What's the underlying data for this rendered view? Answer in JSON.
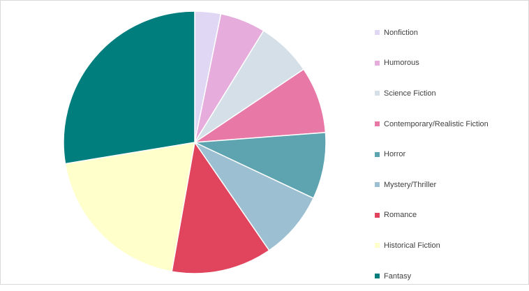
{
  "chart_data": {
    "type": "pie",
    "title": "",
    "categories": [
      "Nonfiction",
      "Humorous",
      "Science Fiction",
      "Contemporary/Realistic Fiction",
      "Horror",
      "Mystery/Thriller",
      "Romance",
      "Historical Fiction",
      "Fantasy"
    ],
    "values": [
      3.2,
      5.6,
      6.8,
      8.2,
      8.2,
      8.4,
      12.4,
      19.6,
      27.6
    ],
    "colors": [
      "#e0d7f4",
      "#e5acdc",
      "#d4dfe8",
      "#e879a7",
      "#5ea4b0",
      "#9cbfd1",
      "#e0455d",
      "#ffffcc",
      "#007d7d"
    ],
    "legend": {
      "position": "right"
    }
  }
}
